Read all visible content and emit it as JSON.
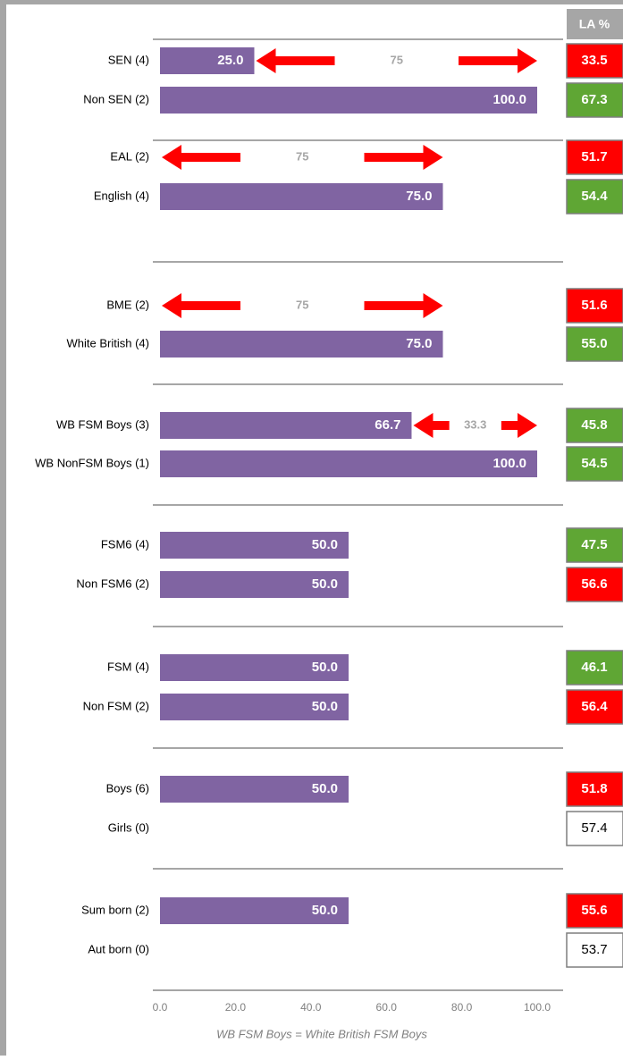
{
  "chart_data": {
    "type": "bar",
    "categories": [
      "SEN (4)",
      "Non SEN (2)",
      "EAL (2)",
      "English (4)",
      "BME (2)",
      "White British (4)",
      "WB FSM Boys (3)",
      "WB NonFSM Boys (1)",
      "FSM6 (4)",
      "Non FSM6 (2)",
      "FSM (4)",
      "Non FSM (2)",
      "Boys (6)",
      "Girls (0)",
      "Sum born (2)",
      "Aut born (0)"
    ],
    "values": [
      25,
      100,
      0,
      75,
      0,
      75,
      66.7,
      100,
      50,
      50,
      50,
      50,
      50,
      null,
      50,
      null
    ],
    "value_labels": [
      "25.0",
      "100.0",
      null,
      "75.0",
      null,
      "75.0",
      "66.7",
      "100.0",
      "50.0",
      "50.0",
      "50.0",
      "50.0",
      "50.0",
      null,
      "50.0",
      null
    ],
    "color": "#8064a2",
    "gaps": [
      75,
      75,
      75,
      33.3,
      null,
      null,
      null,
      null
    ],
    "gap_color": "#ff0000",
    "la_header": "LA %",
    "la_values": [
      33.5,
      67.3,
      51.7,
      54.4,
      51.6,
      55.0,
      45.8,
      54.5,
      47.5,
      56.6,
      46.1,
      56.4,
      51.8,
      57.4,
      55.6,
      53.7
    ],
    "la_value_labels": [
      "33.5",
      "67.3",
      "51.7",
      "54.4",
      "51.6",
      "55.0",
      "45.8",
      "54.5",
      "47.5",
      "56.6",
      "46.1",
      "56.4",
      "51.8",
      "57.4",
      "55.6",
      "53.7"
    ],
    "la_colors": [
      "#ff0000",
      "#5fa634",
      "#ff0000",
      "#5fa634",
      "#ff0000",
      "#5fa634",
      "#5fa634",
      "#5fa634",
      "#5fa634",
      "#ff0000",
      "#5fa634",
      "#ff0000",
      "#ff0000",
      "#ffffff",
      "#ff0000",
      "#ffffff"
    ],
    "xlim": [
      0,
      100
    ],
    "xticks": [
      {
        "value": 0,
        "label": "0.0"
      },
      {
        "value": 20,
        "label": "20.0"
      },
      {
        "value": 40,
        "label": "40.0"
      },
      {
        "value": 60,
        "label": "60.0"
      },
      {
        "value": 80,
        "label": "80.0"
      },
      {
        "value": 100,
        "label": "100.0"
      }
    ],
    "footnote": "WB FSM Boys = White British FSM Boys"
  }
}
